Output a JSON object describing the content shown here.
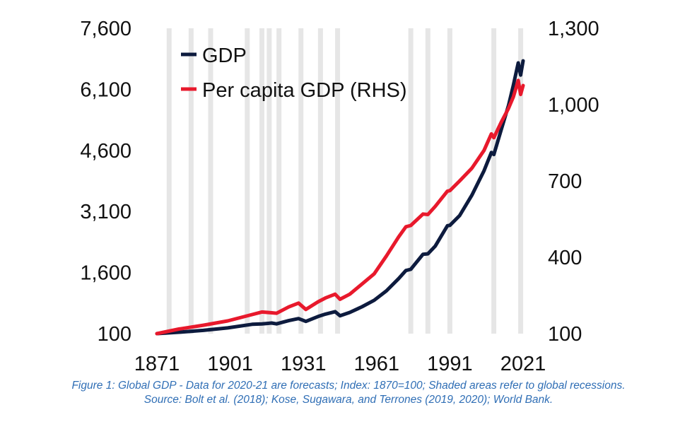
{
  "chart_data": {
    "type": "line",
    "series": [
      {
        "name": "GDP",
        "color": "#0d1b3e",
        "axis": "left",
        "points": [
          [
            1871,
            100
          ],
          [
            1880,
            135
          ],
          [
            1890,
            180
          ],
          [
            1900,
            240
          ],
          [
            1910,
            330
          ],
          [
            1914,
            340
          ],
          [
            1918,
            360
          ],
          [
            1920,
            340
          ],
          [
            1925,
            420
          ],
          [
            1929,
            470
          ],
          [
            1932,
            400
          ],
          [
            1937,
            520
          ],
          [
            1940,
            580
          ],
          [
            1944,
            640
          ],
          [
            1946,
            540
          ],
          [
            1950,
            620
          ],
          [
            1955,
            760
          ],
          [
            1960,
            920
          ],
          [
            1965,
            1150
          ],
          [
            1970,
            1450
          ],
          [
            1973,
            1650
          ],
          [
            1975,
            1680
          ],
          [
            1980,
            2050
          ],
          [
            1982,
            2060
          ],
          [
            1985,
            2250
          ],
          [
            1990,
            2750
          ],
          [
            1991,
            2760
          ],
          [
            1995,
            3000
          ],
          [
            2000,
            3500
          ],
          [
            2005,
            4100
          ],
          [
            2008,
            4550
          ],
          [
            2009,
            4500
          ],
          [
            2012,
            5100
          ],
          [
            2015,
            5700
          ],
          [
            2017,
            6200
          ],
          [
            2019,
            6750
          ],
          [
            2020,
            6450
          ],
          [
            2021,
            6800
          ]
        ]
      },
      {
        "name": "Per capita GDP (RHS)",
        "color": "#e8192c",
        "axis": "right",
        "points": [
          [
            1871,
            100
          ],
          [
            1880,
            118
          ],
          [
            1890,
            133
          ],
          [
            1900,
            150
          ],
          [
            1910,
            175
          ],
          [
            1914,
            185
          ],
          [
            1918,
            182
          ],
          [
            1920,
            180
          ],
          [
            1925,
            205
          ],
          [
            1929,
            220
          ],
          [
            1932,
            195
          ],
          [
            1937,
            225
          ],
          [
            1940,
            240
          ],
          [
            1944,
            255
          ],
          [
            1946,
            235
          ],
          [
            1950,
            255
          ],
          [
            1955,
            295
          ],
          [
            1960,
            335
          ],
          [
            1965,
            405
          ],
          [
            1970,
            480
          ],
          [
            1973,
            520
          ],
          [
            1975,
            525
          ],
          [
            1980,
            570
          ],
          [
            1982,
            568
          ],
          [
            1985,
            600
          ],
          [
            1990,
            660
          ],
          [
            1991,
            662
          ],
          [
            1995,
            700
          ],
          [
            2000,
            750
          ],
          [
            2005,
            820
          ],
          [
            2008,
            885
          ],
          [
            2009,
            870
          ],
          [
            2012,
            930
          ],
          [
            2015,
            985
          ],
          [
            2017,
            1030
          ],
          [
            2019,
            1095
          ],
          [
            2020,
            1040
          ],
          [
            2021,
            1075
          ]
        ]
      }
    ],
    "recessions": [
      1876,
      1885,
      1893,
      1908,
      1914,
      1917,
      1921,
      1930,
      1938,
      1945,
      1975,
      1982,
      1991,
      2009,
      2020
    ],
    "x_ticks": [
      "1871",
      "1901",
      "1931",
      "1961",
      "1991",
      "2021"
    ],
    "y_left_ticks": [
      "100",
      "1,600",
      "3,100",
      "4,600",
      "6,100",
      "7,600"
    ],
    "y_right_ticks": [
      "100",
      "400",
      "700",
      "1,000",
      "1,300"
    ],
    "xlim": [
      1871,
      2021
    ],
    "ylim_left": [
      100,
      7600
    ],
    "ylim_right": [
      100,
      1300
    ],
    "legend_position": "top-left",
    "grid": false
  },
  "caption": {
    "line1": "Figure 1: Global GDP - Data for 2020-21 are forecasts; Index: 1870=100; Shaded areas refer to global recessions.",
    "line2": "Source: Bolt et al. (2018); Kose, Sugawara, and Terrones (2019, 2020); World Bank."
  }
}
